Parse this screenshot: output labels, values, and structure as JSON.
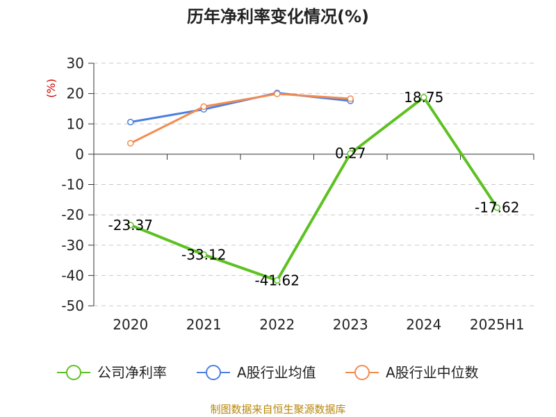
{
  "chart_data": {
    "type": "line",
    "title": "历年净利率变化情况(%)",
    "ylabel": "(%)",
    "xlabel": "",
    "categories": [
      "2020",
      "2021",
      "2022",
      "2023",
      "2024",
      "2025H1"
    ],
    "ylim": [
      -50,
      30
    ],
    "yticks": [
      30,
      20,
      10,
      0,
      -10,
      -20,
      -30,
      -40,
      -50
    ],
    "yticklabels": [
      "30",
      "20",
      "10",
      "0",
      "-10",
      "-20",
      "-30",
      "-40",
      "-50"
    ],
    "grid": true,
    "legend_position": "bottom",
    "series": [
      {
        "name": "公司净利率",
        "color": "#5cc121",
        "values": [
          -23.37,
          -33.12,
          -41.62,
          0.27,
          18.75,
          -17.62
        ],
        "labels": [
          "-23.37",
          "-33.12",
          "-41.62",
          "0.27",
          "18.75",
          "-17.62"
        ]
      },
      {
        "name": "A股行业均值",
        "color": "#4a7fe0",
        "values": [
          10.6,
          14.8,
          20.2,
          17.6,
          null,
          null
        ]
      },
      {
        "name": "A股行业中位数",
        "color": "#f28b50",
        "values": [
          3.6,
          15.7,
          19.9,
          18.3,
          null,
          null
        ]
      }
    ]
  },
  "footer": "制图数据来自恒生聚源数据库"
}
